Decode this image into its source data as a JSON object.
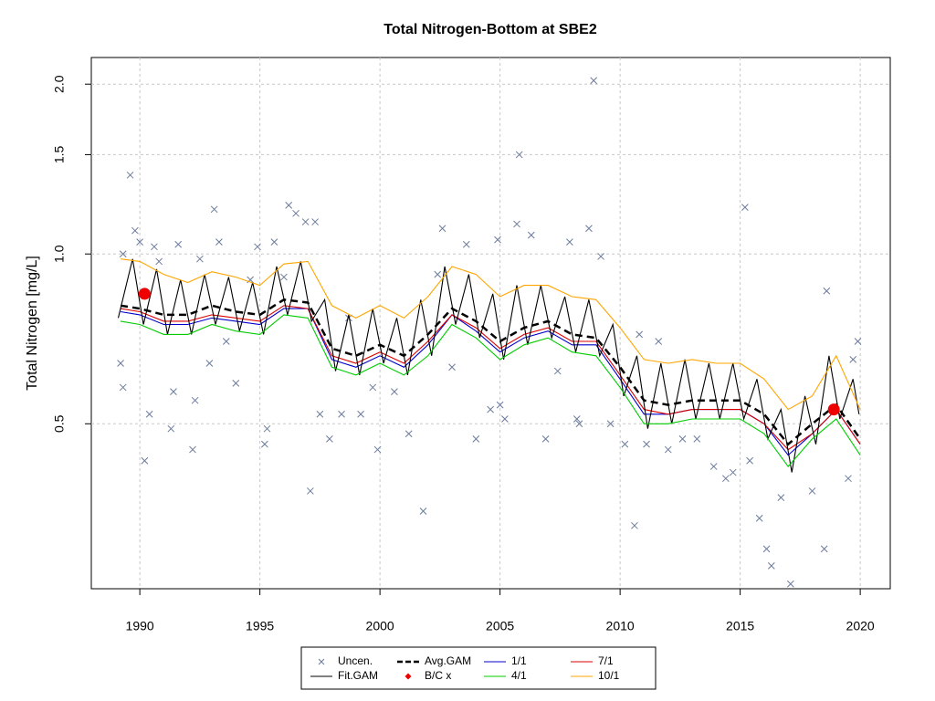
{
  "chart_data": {
    "type": "line",
    "title": "Total Nitrogen-Bottom at SBE2",
    "ylabel": "Total Nitrogen [mg/L]",
    "xlim": [
      1987.98,
      2021.25
    ],
    "ylim": [
      0.255,
      2.23
    ],
    "ylog": true,
    "grid": true,
    "legend": "bottom",
    "xticks": [
      1990,
      1995,
      2000,
      2005,
      2010,
      2015,
      2020
    ],
    "yticks": [
      0.5,
      {
        "value": 1,
        "label": "1.0"
      },
      1.5,
      {
        "value": 2,
        "label": "2.0"
      }
    ],
    "series": [
      {
        "name": "Uncen.",
        "color": "#6b7b9b",
        "mark": "x",
        "x": [
          1989.2,
          1989.3,
          1989.3,
          1989.6,
          1989.8,
          1990.0,
          1990.2,
          1990.4,
          1990.6,
          1990.8,
          1991.3,
          1991.4,
          1991.6,
          1992.2,
          1992.3,
          1992.5,
          1992.9,
          1993.1,
          1993.3,
          1993.6,
          1994.0,
          1994.6,
          1994.9,
          1995.2,
          1995.3,
          1995.6,
          1996.0,
          1996.2,
          1996.5,
          1996.9,
          1997.1,
          1997.3,
          1997.5,
          1997.9,
          1998.4,
          1998.7,
          1999.2,
          1999.7,
          1999.9,
          2000.6,
          2001.2,
          2001.8,
          2002.4,
          2002.6,
          2003.0,
          2003.6,
          2004.0,
          2004.6,
          2004.9,
          2005.0,
          2005.2,
          2005.8,
          2005.7,
          2006.3,
          2006.9,
          2007.4,
          2007.9,
          2008.2,
          2008.3,
          2008.7,
          2008.9,
          2009.2,
          2009.6,
          2010.2,
          2010.6,
          2010.8,
          2011.1,
          2011.6,
          2012.0,
          2012.6,
          2013.2,
          2013.9,
          2014.4,
          2014.7,
          2015.2,
          2015.4,
          2015.8,
          2016.1,
          2016.3,
          2016.7,
          2017.1,
          2018.0,
          2018.5,
          2018.6,
          2019.5,
          2019.7,
          2019.9
        ],
        "values": [
          0.64,
          0.58,
          1.0,
          1.38,
          1.1,
          1.05,
          0.43,
          0.52,
          1.03,
          0.97,
          0.49,
          0.57,
          1.04,
          0.45,
          0.55,
          0.98,
          0.64,
          1.2,
          1.05,
          0.7,
          0.59,
          0.9,
          1.03,
          0.46,
          0.49,
          1.05,
          0.91,
          1.22,
          1.18,
          1.14,
          0.38,
          1.14,
          0.52,
          0.47,
          0.52,
          0.77,
          0.52,
          0.58,
          0.45,
          0.57,
          0.48,
          0.35,
          0.92,
          1.11,
          0.63,
          1.04,
          0.47,
          0.53,
          1.06,
          0.54,
          0.51,
          1.5,
          1.13,
          1.08,
          0.47,
          0.62,
          1.05,
          0.51,
          0.5,
          1.11,
          2.03,
          0.99,
          0.5,
          0.46,
          0.33,
          0.72,
          0.46,
          0.7,
          0.45,
          0.47,
          0.47,
          0.42,
          0.4,
          0.41,
          1.21,
          0.43,
          0.34,
          0.3,
          0.28,
          0.37,
          0.26,
          0.38,
          0.3,
          0.86,
          0.4,
          0.65,
          0.7
        ]
      },
      {
        "name": "Avg.GAM",
        "color": "#000000",
        "mark": "dashed",
        "x": [
          1989.2,
          1990,
          1991,
          1992,
          1993,
          1994,
          1995,
          1996,
          1997,
          1998,
          1999,
          2000,
          2001,
          2002,
          2003,
          2004,
          2005,
          2006,
          2007,
          2008,
          2009,
          2010,
          2011,
          2012,
          2013,
          2014,
          2015,
          2016,
          2017,
          2018,
          2019,
          2020
        ],
        "values": [
          0.81,
          0.8,
          0.78,
          0.78,
          0.81,
          0.79,
          0.78,
          0.83,
          0.82,
          0.68,
          0.66,
          0.69,
          0.66,
          0.72,
          0.8,
          0.76,
          0.7,
          0.74,
          0.76,
          0.72,
          0.71,
          0.63,
          0.55,
          0.54,
          0.55,
          0.55,
          0.55,
          0.52,
          0.46,
          0.5,
          0.54,
          0.47
        ]
      },
      {
        "name": "1/1",
        "color": "#0000cc",
        "mark": "line",
        "x": [
          1989.2,
          1990,
          1991,
          1992,
          1993,
          1994,
          1995,
          1996,
          1997,
          1998,
          1999,
          2000,
          2001,
          2002,
          2003,
          2004,
          2005,
          2006,
          2007,
          2008,
          2009,
          2010,
          2011,
          2012,
          2013,
          2014,
          2015,
          2016,
          2017,
          2018,
          2019,
          2020
        ],
        "values": [
          0.79,
          0.78,
          0.75,
          0.75,
          0.77,
          0.76,
          0.75,
          0.8,
          0.8,
          0.65,
          0.63,
          0.66,
          0.63,
          0.69,
          0.78,
          0.73,
          0.67,
          0.71,
          0.73,
          0.69,
          0.69,
          0.6,
          0.52,
          0.52,
          0.53,
          0.53,
          0.53,
          0.5,
          0.44,
          0.48,
          0.53,
          0.46
        ]
      },
      {
        "name": "7/1",
        "color": "#dd0000",
        "mark": "line",
        "x": [
          1989.2,
          1990,
          1991,
          1992,
          1993,
          1994,
          1995,
          1996,
          1997,
          1998,
          1999,
          2000,
          2001,
          2002,
          2003,
          2004,
          2005,
          2006,
          2007,
          2008,
          2009,
          2010,
          2011,
          2012,
          2013,
          2014,
          2015,
          2016,
          2017,
          2018,
          2019,
          2020
        ],
        "values": [
          0.8,
          0.79,
          0.76,
          0.76,
          0.78,
          0.77,
          0.76,
          0.81,
          0.8,
          0.66,
          0.64,
          0.67,
          0.64,
          0.7,
          0.78,
          0.74,
          0.68,
          0.72,
          0.74,
          0.7,
          0.7,
          0.61,
          0.53,
          0.52,
          0.53,
          0.53,
          0.53,
          0.5,
          0.45,
          0.48,
          0.53,
          0.46
        ]
      },
      {
        "name": "Fit.GAM",
        "color": "#000000",
        "mark": "line",
        "x": [
          1989.1,
          1989.7,
          1990.15,
          1990.7,
          1991.15,
          1991.7,
          1992.15,
          1992.7,
          1993.15,
          1993.7,
          1994.15,
          1994.7,
          1995.15,
          1995.7,
          1996.15,
          1996.7,
          1997.15,
          1997.7,
          1998.15,
          1998.7,
          1999.15,
          1999.7,
          2000.15,
          2000.7,
          2001.15,
          2001.7,
          2002.15,
          2002.7,
          2003.15,
          2003.7,
          2004.15,
          2004.7,
          2005.15,
          2005.7,
          2006.15,
          2006.7,
          2007.15,
          2007.7,
          2008.15,
          2008.7,
          2009.15,
          2009.7,
          2010.15,
          2010.7,
          2011.15,
          2011.7,
          2012.15,
          2012.7,
          2013.15,
          2013.7,
          2014.15,
          2014.7,
          2015.15,
          2015.7,
          2016.15,
          2016.7,
          2017.15,
          2017.7,
          2018.15,
          2018.7,
          2019.15,
          2019.7,
          2019.95
        ],
        "values": [
          0.77,
          0.98,
          0.75,
          0.94,
          0.72,
          0.9,
          0.72,
          0.92,
          0.75,
          0.91,
          0.73,
          0.89,
          0.72,
          0.95,
          0.78,
          0.97,
          0.76,
          0.83,
          0.62,
          0.78,
          0.61,
          0.8,
          0.64,
          0.77,
          0.61,
          0.83,
          0.66,
          0.95,
          0.75,
          0.92,
          0.71,
          0.85,
          0.65,
          0.88,
          0.69,
          0.88,
          0.71,
          0.84,
          0.67,
          0.83,
          0.66,
          0.75,
          0.56,
          0.66,
          0.49,
          0.64,
          0.5,
          0.65,
          0.51,
          0.64,
          0.51,
          0.64,
          0.51,
          0.6,
          0.47,
          0.53,
          0.41,
          0.56,
          0.46,
          0.66,
          0.51,
          0.6,
          0.52
        ]
      },
      {
        "name": "B/C x",
        "color": "#ee0000",
        "mark": "circle",
        "x": [
          1990.2,
          2018.9
        ],
        "values": [
          0.85,
          0.53
        ]
      },
      {
        "name": "4/1",
        "color": "#00cc00",
        "mark": "line",
        "x": [
          1989.2,
          1990,
          1991,
          1992,
          1993,
          1994,
          1995,
          1996,
          1997,
          1998,
          1999,
          2000,
          2001,
          2002,
          2003,
          2004,
          2005,
          2006,
          2007,
          2008,
          2009,
          2010,
          2011,
          2012,
          2013,
          2014,
          2015,
          2016,
          2017,
          2018,
          2019,
          2020
        ],
        "values": [
          0.76,
          0.75,
          0.72,
          0.72,
          0.75,
          0.73,
          0.72,
          0.78,
          0.77,
          0.63,
          0.61,
          0.64,
          0.61,
          0.66,
          0.75,
          0.71,
          0.65,
          0.69,
          0.71,
          0.67,
          0.66,
          0.58,
          0.5,
          0.5,
          0.51,
          0.51,
          0.51,
          0.48,
          0.42,
          0.47,
          0.51,
          0.44
        ]
      },
      {
        "name": "10/1",
        "color": "#ffa500",
        "mark": "line",
        "x": [
          1989.2,
          1990,
          1991,
          1992,
          1993,
          1994,
          1995,
          1996,
          1997,
          1998,
          1999,
          2000,
          2001,
          2002,
          2003,
          2004,
          2005,
          2006,
          2007,
          2008,
          2009,
          2010,
          2011,
          2012,
          2013,
          2014,
          2015,
          2016,
          2017,
          2018,
          2019,
          2020
        ],
        "values": [
          0.98,
          0.97,
          0.92,
          0.89,
          0.93,
          0.91,
          0.88,
          0.96,
          0.97,
          0.81,
          0.77,
          0.81,
          0.77,
          0.84,
          0.95,
          0.92,
          0.84,
          0.88,
          0.88,
          0.84,
          0.83,
          0.74,
          0.65,
          0.64,
          0.65,
          0.64,
          0.64,
          0.6,
          0.53,
          0.56,
          0.66,
          0.53
        ]
      }
    ]
  }
}
